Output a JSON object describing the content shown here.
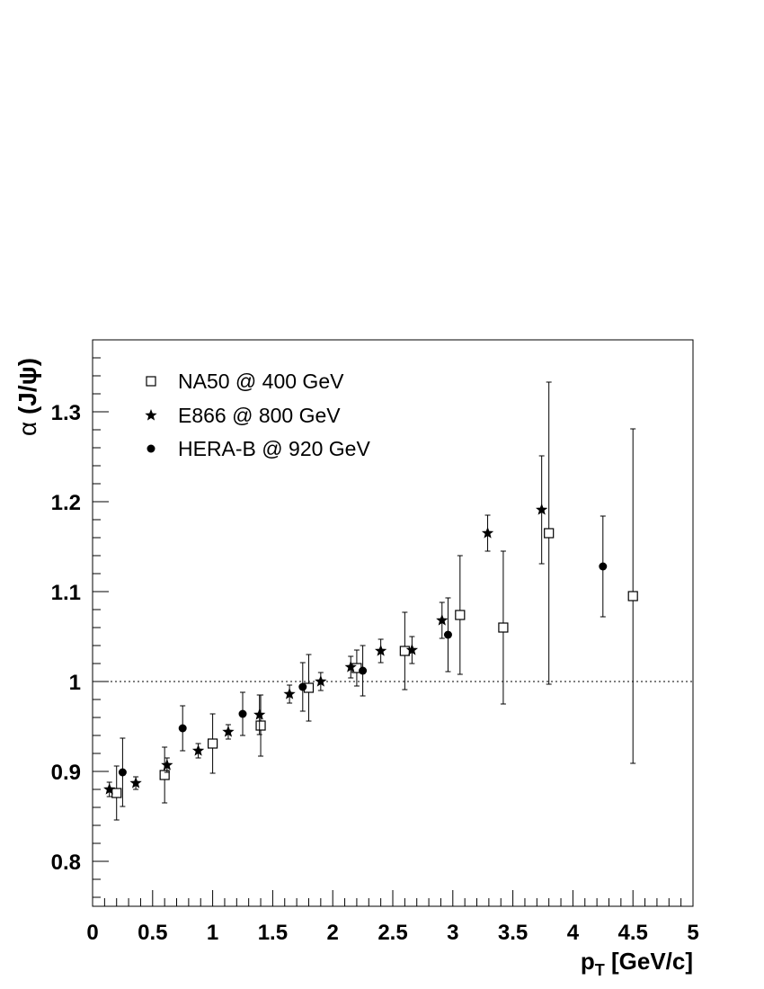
{
  "chart_data": {
    "type": "scatter",
    "xlabel_main": "p",
    "xlabel_sub": "T",
    "xlabel_unit": " [GeV/c]",
    "ylabel_greek": "α",
    "ylabel_rest": " (J/ψ)",
    "xlim": [
      0,
      5
    ],
    "ylim": [
      0.75,
      1.38
    ],
    "x_ticks": [
      0,
      0.5,
      1,
      1.5,
      2,
      2.5,
      3,
      3.5,
      4,
      4.5,
      5
    ],
    "x_tick_labels": [
      "0",
      "0.5",
      "1",
      "1.5",
      "2",
      "2.5",
      "3",
      "3.5",
      "4",
      "4.5",
      "5"
    ],
    "y_ticks": [
      0.8,
      0.9,
      1.0,
      1.1,
      1.2,
      1.3
    ],
    "y_tick_labels": [
      "0.8",
      "0.9",
      "1",
      "1.1",
      "1.2",
      "1.3"
    ],
    "reference_line": 1.0,
    "legend_position": "top-left",
    "series": [
      {
        "name": "NA50 @ 400 GeV",
        "marker": "open-square",
        "points": [
          {
            "x": 0.2,
            "y": 0.876,
            "err": 0.03
          },
          {
            "x": 0.6,
            "y": 0.896,
            "err": 0.031
          },
          {
            "x": 1.0,
            "y": 0.931,
            "err": 0.033
          },
          {
            "x": 1.4,
            "y": 0.951,
            "err": 0.034
          },
          {
            "x": 1.8,
            "y": 0.993,
            "err": 0.037
          },
          {
            "x": 2.2,
            "y": 1.015,
            "err": 0.02
          },
          {
            "x": 2.6,
            "y": 1.034,
            "err": 0.043
          },
          {
            "x": 3.06,
            "y": 1.074,
            "err": 0.066
          },
          {
            "x": 3.42,
            "y": 1.06,
            "err": 0.085
          },
          {
            "x": 3.8,
            "y": 1.165,
            "err": 0.168
          },
          {
            "x": 4.5,
            "y": 1.095,
            "err": 0.186
          }
        ]
      },
      {
        "name": "E866 @ 800 GeV",
        "marker": "star",
        "points": [
          {
            "x": 0.14,
            "y": 0.88,
            "err": 0.008
          },
          {
            "x": 0.36,
            "y": 0.887,
            "err": 0.007
          },
          {
            "x": 0.62,
            "y": 0.907,
            "err": 0.008
          },
          {
            "x": 0.88,
            "y": 0.923,
            "err": 0.008
          },
          {
            "x": 1.13,
            "y": 0.944,
            "err": 0.008
          },
          {
            "x": 1.39,
            "y": 0.963,
            "err": 0.022
          },
          {
            "x": 1.64,
            "y": 0.986,
            "err": 0.01
          },
          {
            "x": 1.9,
            "y": 1.0,
            "err": 0.01
          },
          {
            "x": 2.15,
            "y": 1.016,
            "err": 0.012
          },
          {
            "x": 2.4,
            "y": 1.034,
            "err": 0.013
          },
          {
            "x": 2.66,
            "y": 1.035,
            "err": 0.015
          },
          {
            "x": 2.91,
            "y": 1.068,
            "err": 0.02
          },
          {
            "x": 3.29,
            "y": 1.165,
            "err": 0.02
          },
          {
            "x": 3.74,
            "y": 1.191,
            "err": 0.06
          }
        ]
      },
      {
        "name": "HERA-B @ 920 GeV",
        "marker": "filled-circle",
        "points": [
          {
            "x": 0.25,
            "y": 0.899,
            "err": 0.038
          },
          {
            "x": 0.75,
            "y": 0.948,
            "err": 0.025
          },
          {
            "x": 1.25,
            "y": 0.964,
            "err": 0.024
          },
          {
            "x": 1.75,
            "y": 0.994,
            "err": 0.027
          },
          {
            "x": 2.25,
            "y": 1.012,
            "err": 0.028
          },
          {
            "x": 2.96,
            "y": 1.052,
            "err": 0.041
          },
          {
            "x": 4.25,
            "y": 1.128,
            "err": 0.056
          }
        ]
      }
    ]
  }
}
